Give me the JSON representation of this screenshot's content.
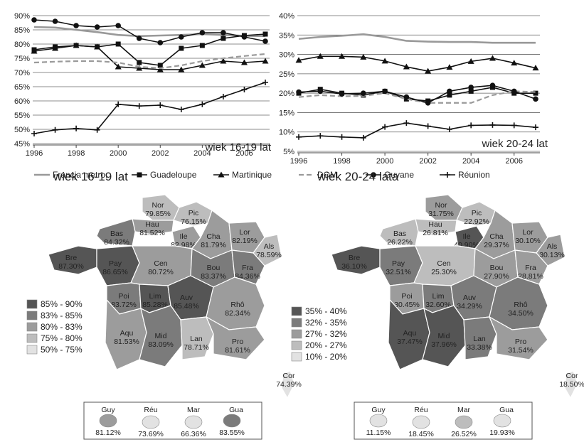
{
  "chart_data": [
    {
      "type": "line",
      "title": "wiek 16-19 lat",
      "x": [
        1996,
        1997,
        1998,
        1999,
        2000,
        2001,
        2002,
        2003,
        2004,
        2005,
        2006,
        2007
      ],
      "x_ticks": [
        "1996",
        "1998",
        "2000",
        "2002",
        "2004",
        "2006"
      ],
      "ylim": [
        45,
        90
      ],
      "y_ticks": [
        "45%",
        "50%",
        "55%",
        "60%",
        "65%",
        "70%",
        "75%",
        "80%",
        "85%",
        "90%"
      ],
      "grid": true,
      "series": [
        {
          "name": "Francja metro.",
          "values": [
            86.0,
            85.8,
            85.0,
            84.2,
            83.2,
            82.8,
            83.0,
            83.2,
            83.5,
            83.2,
            82.9,
            82.8
          ]
        },
        {
          "name": "Guadeloupe",
          "values": [
            78.0,
            79.0,
            79.5,
            79.0,
            80.0,
            73.5,
            72.5,
            78.5,
            79.5,
            82.0,
            83.0,
            83.5
          ]
        },
        {
          "name": "Martinique",
          "values": [
            77.5,
            78.5,
            79.5,
            79.0,
            72.0,
            71.5,
            71.0,
            71.0,
            72.5,
            74.0,
            73.5,
            74.0
          ]
        },
        {
          "name": "DOM",
          "values": [
            73.5,
            73.8,
            74.0,
            74.0,
            73.5,
            72.0,
            71.5,
            72.5,
            74.0,
            75.0,
            75.8,
            76.5
          ]
        },
        {
          "name": "Guyane",
          "values": [
            88.5,
            88.0,
            86.5,
            86.0,
            86.5,
            82.0,
            80.5,
            82.5,
            84.0,
            84.0,
            82.5,
            81.0
          ]
        },
        {
          "name": "Réunion",
          "values": [
            48.5,
            49.8,
            50.3,
            49.8,
            58.8,
            58.2,
            58.5,
            57.0,
            58.8,
            61.5,
            64.0,
            66.5
          ]
        }
      ]
    },
    {
      "type": "line",
      "title": "wiek 20-24 lat",
      "x": [
        1996,
        1997,
        1998,
        1999,
        2000,
        2001,
        2002,
        2003,
        2004,
        2005,
        2006,
        2007
      ],
      "x_ticks": [
        "1996",
        "1998",
        "2000",
        "2002",
        "2004",
        "2006"
      ],
      "ylim": [
        5,
        40
      ],
      "y_ticks": [
        "5%",
        "10%",
        "15%",
        "20%",
        "25%",
        "30%",
        "35%",
        "40%"
      ],
      "grid": true,
      "series": [
        {
          "name": "Francja metro.",
          "values": [
            34.0,
            34.5,
            34.8,
            35.2,
            34.5,
            33.5,
            33.3,
            33.2,
            33.2,
            33.0,
            33.0,
            33.0
          ]
        },
        {
          "name": "Guadeloupe",
          "values": [
            20.0,
            21.0,
            20.0,
            19.5,
            20.5,
            18.5,
            18.0,
            19.5,
            20.5,
            21.5,
            20.0,
            20.0
          ]
        },
        {
          "name": "Martinique",
          "values": [
            28.5,
            29.5,
            29.5,
            29.3,
            28.3,
            26.8,
            25.7,
            26.7,
            28.2,
            29.0,
            27.8,
            26.5
          ]
        },
        {
          "name": "DOM",
          "values": [
            19.0,
            19.5,
            19.2,
            19.3,
            20.0,
            18.5,
            17.5,
            17.5,
            17.5,
            19.5,
            20.5,
            20.3
          ]
        },
        {
          "name": "Guyane",
          "values": [
            20.3,
            20.5,
            19.8,
            20.0,
            20.5,
            19.0,
            17.5,
            20.5,
            21.5,
            22.0,
            20.5,
            18.5
          ]
        },
        {
          "name": "Réunion",
          "values": [
            8.7,
            9.0,
            8.7,
            8.5,
            11.3,
            12.3,
            11.5,
            10.7,
            11.7,
            11.8,
            11.7,
            11.2
          ]
        }
      ]
    },
    {
      "type": "heatmap",
      "title": "wiek 16-19 lat",
      "legend": [
        {
          "label": "85% - 90%",
          "color": "#555555"
        },
        {
          "label": "83% - 85%",
          "color": "#7b7b7b"
        },
        {
          "label": "80% - 83%",
          "color": "#9c9c9c"
        },
        {
          "label": "75% - 80%",
          "color": "#bdbdbd"
        },
        {
          "label": "50% - 75%",
          "color": "#e2e2e2"
        }
      ],
      "regions": [
        {
          "abbr": "Nor",
          "value": "79.85%",
          "bin": 3
        },
        {
          "abbr": "Pic",
          "value": "76.15%",
          "bin": 3
        },
        {
          "abbr": "Hau",
          "value": "81.52%",
          "bin": 2
        },
        {
          "abbr": "Bas",
          "value": "84.32%",
          "bin": 1
        },
        {
          "abbr": "Ile",
          "value": "82.98%",
          "bin": 2
        },
        {
          "abbr": "Cha",
          "value": "81.79%",
          "bin": 2
        },
        {
          "abbr": "Lor",
          "value": "82.19%",
          "bin": 2
        },
        {
          "abbr": "Als",
          "value": "78.59%",
          "bin": 3
        },
        {
          "abbr": "Bre",
          "value": "87.30%",
          "bin": 0
        },
        {
          "abbr": "Pay",
          "value": "86.65%",
          "bin": 0
        },
        {
          "abbr": "Cen",
          "value": "80.72%",
          "bin": 2
        },
        {
          "abbr": "Bou",
          "value": "83.37%",
          "bin": 1
        },
        {
          "abbr": "Fra",
          "value": "84.36%",
          "bin": 1
        },
        {
          "abbr": "Poi",
          "value": "83.72%",
          "bin": 1
        },
        {
          "abbr": "Lim",
          "value": "85.28%",
          "bin": 0
        },
        {
          "abbr": "Auv",
          "value": "85.48%",
          "bin": 0
        },
        {
          "abbr": "Rhô",
          "value": "82.34%",
          "bin": 2
        },
        {
          "abbr": "Aqu",
          "value": "81.53%",
          "bin": 2
        },
        {
          "abbr": "Mid",
          "value": "83.09%",
          "bin": 1
        },
        {
          "abbr": "Lan",
          "value": "78.71%",
          "bin": 3
        },
        {
          "abbr": "Pro",
          "value": "81.61%",
          "bin": 2
        },
        {
          "abbr": "Cor",
          "value": "74.39%",
          "bin": 4
        },
        {
          "abbr": "Guy",
          "value": "81.12%",
          "bin": 2
        },
        {
          "abbr": "Réu",
          "value": "73.69%",
          "bin": 4
        },
        {
          "abbr": "Mar",
          "value": "66.36%",
          "bin": 4
        },
        {
          "abbr": "Gua",
          "value": "83.55%",
          "bin": 1
        }
      ]
    },
    {
      "type": "heatmap",
      "title": "wiek 20-24 lata",
      "legend": [
        {
          "label": "35% - 40%",
          "color": "#555555"
        },
        {
          "label": "32% - 35%",
          "color": "#7b7b7b"
        },
        {
          "label": "27% - 32%",
          "color": "#9c9c9c"
        },
        {
          "label": "20% - 27%",
          "color": "#bdbdbd"
        },
        {
          "label": "10% - 20%",
          "color": "#e2e2e2"
        }
      ],
      "regions": [
        {
          "abbr": "Nor",
          "value": "31.75%",
          "bin": 2
        },
        {
          "abbr": "Pic",
          "value": "22.92%",
          "bin": 3
        },
        {
          "abbr": "Hau",
          "value": "26.81%",
          "bin": 3
        },
        {
          "abbr": "Bas",
          "value": "26.22%",
          "bin": 3
        },
        {
          "abbr": "Ile",
          "value": "40.90%",
          "bin": 0
        },
        {
          "abbr": "Cha",
          "value": "29.37%",
          "bin": 2
        },
        {
          "abbr": "Lor",
          "value": "30.10%",
          "bin": 2
        },
        {
          "abbr": "Als",
          "value": "30.13%",
          "bin": 2
        },
        {
          "abbr": "Bre",
          "value": "36.10%",
          "bin": 0
        },
        {
          "abbr": "Pay",
          "value": "32.51%",
          "bin": 1
        },
        {
          "abbr": "Cen",
          "value": "25.30%",
          "bin": 3
        },
        {
          "abbr": "Bou",
          "value": "27.90%",
          "bin": 2
        },
        {
          "abbr": "Fra",
          "value": "28.81%",
          "bin": 2
        },
        {
          "abbr": "Poi",
          "value": "30.45%",
          "bin": 2
        },
        {
          "abbr": "Lim",
          "value": "32.60%",
          "bin": 1
        },
        {
          "abbr": "Auv",
          "value": "34.29%",
          "bin": 1
        },
        {
          "abbr": "Rhô",
          "value": "34.50%",
          "bin": 1
        },
        {
          "abbr": "Aqu",
          "value": "37.47%",
          "bin": 0
        },
        {
          "abbr": "Mid",
          "value": "37.96%",
          "bin": 0
        },
        {
          "abbr": "Lan",
          "value": "33.38%",
          "bin": 1
        },
        {
          "abbr": "Pro",
          "value": "31.54%",
          "bin": 2
        },
        {
          "abbr": "Cor",
          "value": "18.50%",
          "bin": 4
        },
        {
          "abbr": "Guy",
          "value": "11.15%",
          "bin": 4
        },
        {
          "abbr": "Réu",
          "value": "18.45%",
          "bin": 4
        },
        {
          "abbr": "Mar",
          "value": "26.52%",
          "bin": 3
        },
        {
          "abbr": "Gua",
          "value": "19.93%",
          "bin": 4
        }
      ]
    }
  ]
}
